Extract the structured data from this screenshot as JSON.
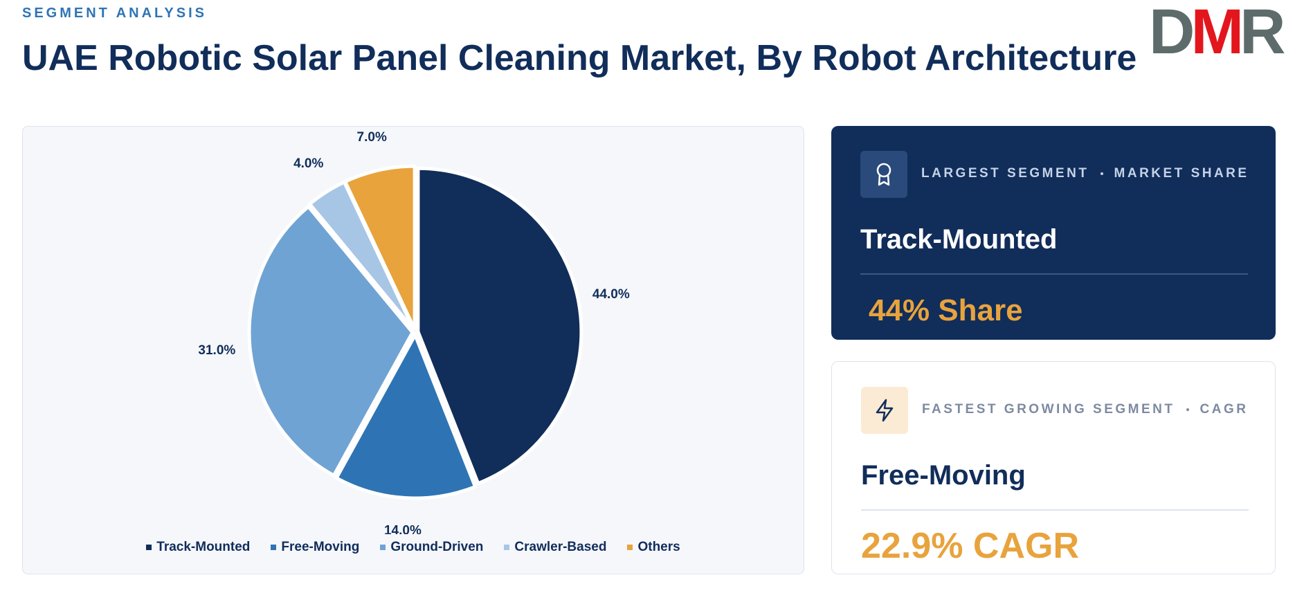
{
  "header": {
    "eyebrow": "SEGMENT ANALYSIS",
    "title": "UAE Robotic Solar Panel Cleaning Market, By Robot Architecture",
    "logo": "DMR"
  },
  "chart_data": {
    "type": "pie",
    "categories": [
      "Track-Mounted",
      "Free-Moving",
      "Ground-Driven",
      "Crawler-Based",
      "Others"
    ],
    "values": [
      44,
      14,
      31,
      4,
      7
    ],
    "value_labels": [
      "44.0%",
      "14.0%",
      "31.0%",
      "4.0%",
      "7.0%"
    ],
    "colors": [
      "#112d5a",
      "#2e74b5",
      "#6fa3d3",
      "#a7c6e6",
      "#e8a33d"
    ],
    "legend": "bottom"
  },
  "cards": [
    {
      "label": "LARGEST SEGMENT",
      "metric": "MARKET SHARE",
      "segment": "Track-Mounted",
      "value": "44% Share"
    },
    {
      "label": "FASTEST GROWING SEGMENT",
      "metric": "CAGR",
      "segment": "Free-Moving",
      "value": "22.9% CAGR"
    }
  ]
}
